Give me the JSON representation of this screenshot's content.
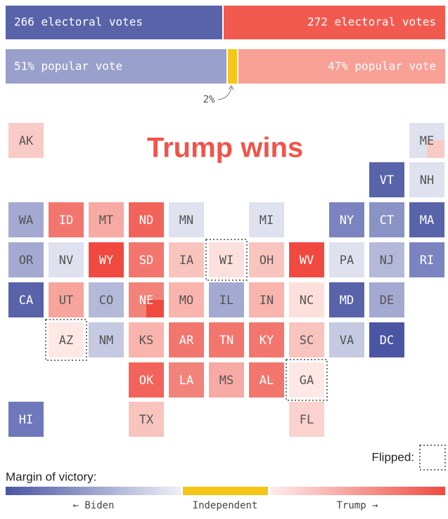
{
  "header": {
    "electoral": {
      "left": "266 electoral votes",
      "right": "272 electoral votes",
      "left_color": "#5863aa",
      "right_color": "#f25a50"
    },
    "popular": {
      "left": "51% popular vote",
      "middle": "2%",
      "right": "47% popular vote",
      "left_color": "#9aa0cc",
      "middle_color": "#f5c518",
      "right_color": "#f9a096"
    }
  },
  "title": "Trump wins",
  "states": [
    {
      "label": "AK",
      "color": "#f9cbc6"
    },
    {
      "label": "ME",
      "color": "#dfe1ef",
      "split_color": "#f9c9c4"
    },
    {
      "label": "VT",
      "color": "#5863aa"
    },
    {
      "label": "NH",
      "color": "#dfe1ef"
    },
    {
      "label": "WA",
      "color": "#a3a9d1"
    },
    {
      "label": "ID",
      "color": "#f2766e"
    },
    {
      "label": "MT",
      "color": "#f7aaa3"
    },
    {
      "label": "ND",
      "color": "#f2645b"
    },
    {
      "label": "MN",
      "color": "#dfe1ef"
    },
    {
      "label": "MI",
      "color": "#dfe1ef"
    },
    {
      "label": "NY",
      "color": "#7b84c0"
    },
    {
      "label": "CT",
      "color": "#8a93c6"
    },
    {
      "label": "MA",
      "color": "#5863aa"
    },
    {
      "label": "OR",
      "color": "#a3a9d1"
    },
    {
      "label": "NV",
      "color": "#dfe1ef"
    },
    {
      "label": "WY",
      "color": "#f04a40"
    },
    {
      "label": "SD",
      "color": "#f2766e"
    },
    {
      "label": "IA",
      "color": "#f9c4be"
    },
    {
      "label": "WI",
      "color": "#fbe0dd",
      "flipped": true
    },
    {
      "label": "OH",
      "color": "#f9c4be"
    },
    {
      "label": "WV",
      "color": "#f04a40"
    },
    {
      "label": "PA",
      "color": "#dfe1ef"
    },
    {
      "label": "NJ",
      "color": "#b4b9da"
    },
    {
      "label": "RI",
      "color": "#7b84c0"
    },
    {
      "label": "CA",
      "color": "#5863aa"
    },
    {
      "label": "UT",
      "color": "#f7a49c"
    },
    {
      "label": "CO",
      "color": "#b4b9da"
    },
    {
      "label": "NE",
      "color": "#f2837a",
      "split_color": "#f04a40"
    },
    {
      "label": "MO",
      "color": "#f9b4ad"
    },
    {
      "label": "IL",
      "color": "#a3a9d1"
    },
    {
      "label": "IN",
      "color": "#f9b4ad"
    },
    {
      "label": "NC",
      "color": "#fde0dc"
    },
    {
      "label": "MD",
      "color": "#5863aa"
    },
    {
      "label": "DE",
      "color": "#a3a9d1"
    },
    {
      "label": "AZ",
      "color": "#fde8e6",
      "flipped": true
    },
    {
      "label": "NM",
      "color": "#c5c9e2"
    },
    {
      "label": "KS",
      "color": "#f9b4ad"
    },
    {
      "label": "AR",
      "color": "#f2766e"
    },
    {
      "label": "TN",
      "color": "#f2766e"
    },
    {
      "label": "KY",
      "color": "#f2766e"
    },
    {
      "label": "SC",
      "color": "#f9c4be"
    },
    {
      "label": "VA",
      "color": "#c5c9e2"
    },
    {
      "label": "DC",
      "color": "#4a56a3"
    },
    {
      "label": "OK",
      "color": "#f2645b"
    },
    {
      "label": "LA",
      "color": "#f2837a"
    },
    {
      "label": "MS",
      "color": "#f7aaa3"
    },
    {
      "label": "AL",
      "color": "#f2766e"
    },
    {
      "label": "GA",
      "color": "#fde8e6",
      "flipped": true
    },
    {
      "label": "HI",
      "color": "#6e78ba"
    },
    {
      "label": "TX",
      "color": "#f9c4be"
    },
    {
      "label": "FL",
      "color": "#fbd2cd"
    }
  ],
  "legend": {
    "flipped": "Flipped:",
    "margin_title": "Margin of victory:",
    "biden": "← Biden",
    "independent": "Independent",
    "trump": "Trump →"
  }
}
